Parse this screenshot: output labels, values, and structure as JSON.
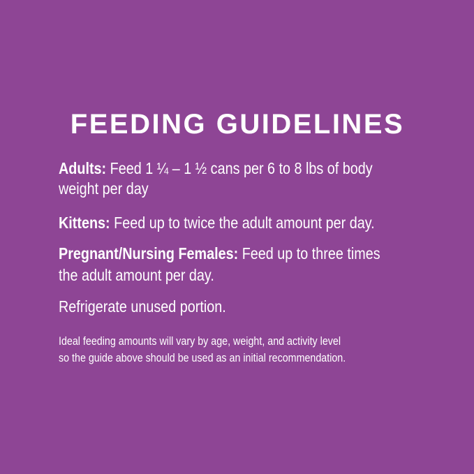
{
  "title": "FEEDING GUIDELINES",
  "adults": {
    "label": "Adults:",
    "line1": "Feed 1 ¼ – 1 ½ cans per 6 to 8 lbs of body",
    "line2": "weight per day"
  },
  "kittens": {
    "label": "Kittens:",
    "text": "Feed up to twice the adult amount per day."
  },
  "pregnant": {
    "label": "Pregnant/Nursing Females:",
    "line1": "Feed up to three times",
    "line2": "the adult amount per day."
  },
  "refrigerate": "Refrigerate unused portion.",
  "note": {
    "line1": "Ideal feeding amounts will vary by age, weight, and activity level",
    "line2": "so the guide above should be used as an initial recommendation."
  },
  "colors": {
    "background": "#8e4595",
    "text": "#ffffff"
  }
}
